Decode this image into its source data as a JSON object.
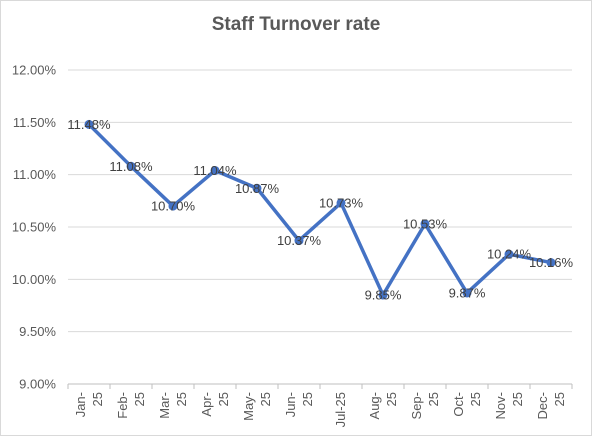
{
  "chart_data": {
    "type": "line",
    "title": "Staff Turnover rate",
    "xlabel": "",
    "ylabel": "",
    "categories": [
      "Jan-25",
      "Feb-25",
      "Mar-25",
      "Apr-25",
      "May-25",
      "Jun-25",
      "Jul-25",
      "Aug-25",
      "Sep-25",
      "Oct-25",
      "Nov-25",
      "Dec-25"
    ],
    "category_tick_lines": [
      [
        "Jan-",
        "25"
      ],
      [
        "Feb-",
        "25"
      ],
      [
        "Mar-",
        "25"
      ],
      [
        "Apr-",
        "25"
      ],
      [
        "May-",
        "25"
      ],
      [
        "Jun-",
        "25"
      ],
      [
        "Jul-25"
      ],
      [
        "Aug-",
        "25"
      ],
      [
        "Sep-",
        "25"
      ],
      [
        "Oct-",
        "25"
      ],
      [
        "Nov-",
        "25"
      ],
      [
        "Dec-",
        "25"
      ]
    ],
    "values": [
      11.48,
      11.08,
      10.7,
      11.04,
      10.87,
      10.37,
      10.73,
      9.85,
      10.53,
      9.87,
      10.24,
      10.16
    ],
    "data_labels": [
      "11.48%",
      "11.08%",
      "10.70%",
      "11.04%",
      "10.87%",
      "10.37%",
      "10.73%",
      "9.85%",
      "10.53%",
      "9.87%",
      "10.24%",
      "10.16%"
    ],
    "ylim": [
      9.0,
      12.0
    ],
    "yticks": [
      9.0,
      9.5,
      10.0,
      10.5,
      11.0,
      11.5,
      12.0
    ],
    "ytick_labels": [
      "9.00%",
      "9.50%",
      "10.00%",
      "10.50%",
      "11.00%",
      "11.50%",
      "12.00%"
    ],
    "grid": true,
    "legend": "none",
    "line_color": "#4472c4"
  }
}
